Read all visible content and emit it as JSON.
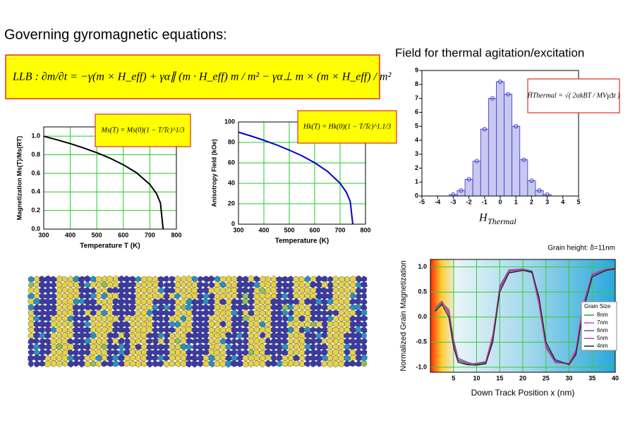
{
  "title": "Governing gyromagnetic equations:",
  "llb_equation": "LLB :   ∂m/∂t = −γ(m × H_eff) + γα∥ (m · H_eff) m / m² − γα⊥ m × (m × H_eff) / m²",
  "thermal_title": "Field for thermal agitation/excitation",
  "chart_data": [
    {
      "type": "line",
      "xlabel": "Temperature T (K)",
      "ylabel": "Magnetization Ms(T)/Ms(RT)",
      "formula": "Ms(T) = Ms(0)(1 − T/Tc)^1/3",
      "x": [
        300,
        350,
        400,
        450,
        500,
        550,
        600,
        650,
        700,
        725,
        740,
        750
      ],
      "values": [
        1.0,
        0.961,
        0.92,
        0.874,
        0.822,
        0.763,
        0.693,
        0.606,
        0.481,
        0.382,
        0.281,
        0
      ],
      "color": "#000000",
      "xlim": [
        300,
        800
      ],
      "ylim": [
        0,
        1.1
      ],
      "xticks": [
        300,
        400,
        500,
        600,
        700,
        800
      ],
      "yticks": [
        {
          "value": 0,
          "label": "0.0"
        },
        0.2,
        0.4,
        0.6,
        0.8,
        {
          "value": 1,
          "label": "1.0"
        }
      ],
      "grid": true,
      "grid_color": "#22cc22"
    },
    {
      "type": "line",
      "xlabel": "Temperature (K)",
      "ylabel": "Anisotropy Field (kOe)",
      "formula": "Hk(T) = Hk(0)(1 − T/Tc)^1.1/3",
      "x": [
        300,
        350,
        400,
        450,
        500,
        550,
        600,
        650,
        700,
        725,
        740,
        750
      ],
      "values": [
        90,
        86.2,
        82.1,
        77.6,
        72.5,
        66.9,
        60.1,
        51.8,
        40.1,
        31.1,
        22.2,
        0
      ],
      "color": "#0000cc",
      "xlim": [
        300,
        800
      ],
      "ylim": [
        0,
        100
      ],
      "xticks": [
        300,
        400,
        500,
        600,
        700,
        800
      ],
      "yticks": [
        0,
        20,
        40,
        60,
        80,
        100
      ],
      "grid": true,
      "grid_color": "#22cc22"
    },
    {
      "type": "histogram",
      "xlabel": "H",
      "xlabel_sub": "Thermal",
      "formula": "H̄Thermal = √( 2αkBT / MVγΔt )",
      "bins": [
        -3.25,
        -2.75,
        -2.25,
        -1.75,
        -1.25,
        -0.75,
        -0.25,
        0.25,
        0.75,
        1.25,
        1.75,
        2.25,
        2.75,
        3.25
      ],
      "counts": [
        0.1,
        0.4,
        1.2,
        2.5,
        4.8,
        7.0,
        8.2,
        7.3,
        5.0,
        2.6,
        1.1,
        0.4,
        0.1
      ],
      "color": "#3333cc",
      "xlim": [
        -5,
        5
      ],
      "ylim": [
        0,
        9
      ],
      "xticks": [
        -5,
        -4,
        -3,
        -2,
        -1,
        0,
        1,
        2,
        3,
        4,
        5
      ],
      "yticks": [
        0,
        1,
        2,
        3,
        4,
        5,
        6,
        7,
        8,
        9
      ],
      "grid": false
    },
    {
      "type": "line",
      "xlabel": "Down Track Position x (nm)",
      "ylabel": "Normalized Grain Magnetization",
      "annotation": "Grain height:  δ=11nm",
      "legend_title": "Grain Size",
      "x": [
        1,
        2.5,
        4,
        5,
        6,
        8,
        10,
        12,
        13.5,
        15,
        17,
        20,
        22,
        23.5,
        25,
        27,
        30,
        31.5,
        33,
        35,
        38,
        40
      ],
      "series": [
        {
          "name": "8nm",
          "color": "#22aa22",
          "values": [
            0.15,
            0.3,
            0.1,
            -0.5,
            -0.85,
            -0.92,
            -0.94,
            -0.9,
            -0.4,
            0.6,
            0.93,
            0.95,
            0.9,
            0.3,
            -0.6,
            -0.9,
            -0.93,
            -0.7,
            0.2,
            0.85,
            0.95,
            0.97
          ]
        },
        {
          "name": "7nm",
          "color": "#dd33dd",
          "values": [
            0.2,
            0.3,
            0.05,
            -0.55,
            -0.87,
            -0.93,
            -0.93,
            -0.88,
            -0.35,
            0.55,
            0.9,
            0.94,
            0.88,
            0.25,
            -0.62,
            -0.9,
            -0.92,
            -0.65,
            0.25,
            0.85,
            0.94,
            0.96
          ]
        },
        {
          "name": "6nm",
          "color": "#5555bb",
          "values": [
            0.1,
            0.28,
            0.15,
            -0.45,
            -0.82,
            -0.9,
            -0.95,
            -0.92,
            -0.45,
            0.62,
            0.94,
            0.96,
            0.92,
            0.35,
            -0.55,
            -0.88,
            -0.94,
            -0.72,
            0.15,
            0.82,
            0.95,
            0.97
          ]
        },
        {
          "name": "5nm",
          "color": "#bb4488",
          "values": [
            0.18,
            0.32,
            0.08,
            -0.52,
            -0.86,
            -0.94,
            -0.92,
            -0.89,
            -0.38,
            0.58,
            0.92,
            0.95,
            0.89,
            0.28,
            -0.6,
            -0.91,
            -0.93,
            -0.68,
            0.22,
            0.86,
            0.96,
            0.98
          ]
        },
        {
          "name": "4nm",
          "color": "#222222",
          "values": [
            0.12,
            0.25,
            0.0,
            -0.6,
            -0.9,
            -0.95,
            -0.96,
            -0.93,
            -0.5,
            0.5,
            0.88,
            0.93,
            0.9,
            0.4,
            -0.5,
            -0.85,
            -0.95,
            -0.75,
            0.1,
            0.8,
            0.93,
            0.96
          ]
        }
      ],
      "xlim": [
        0,
        40
      ],
      "ylim": [
        -1.1,
        1.15
      ],
      "xticks": [
        5,
        10,
        15,
        20,
        25,
        30,
        35,
        40
      ],
      "yticks": [
        {
          "value": -1,
          "label": "-1.0"
        },
        -0.5,
        {
          "value": 0,
          "label": "0.0"
        },
        0.5,
        {
          "value": 1,
          "label": "1.0"
        }
      ],
      "grid": true,
      "grid_color": "#33cc33"
    }
  ]
}
